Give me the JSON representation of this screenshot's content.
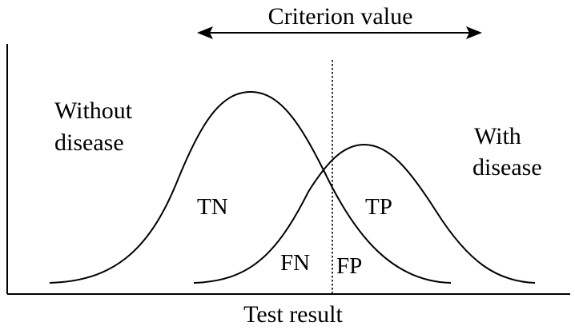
{
  "diagram": {
    "criterion_label": "Criterion value",
    "x_axis_label": "Test result",
    "without_disease_line1": "Without",
    "without_disease_line2": "disease",
    "with_disease_line1": "With",
    "with_disease_line2": "disease",
    "tn_label": "TN",
    "tp_label": "TP",
    "fn_label": "FN",
    "fp_label": "FP"
  },
  "colors": {
    "ink": "#000000",
    "background": "#ffffff"
  }
}
